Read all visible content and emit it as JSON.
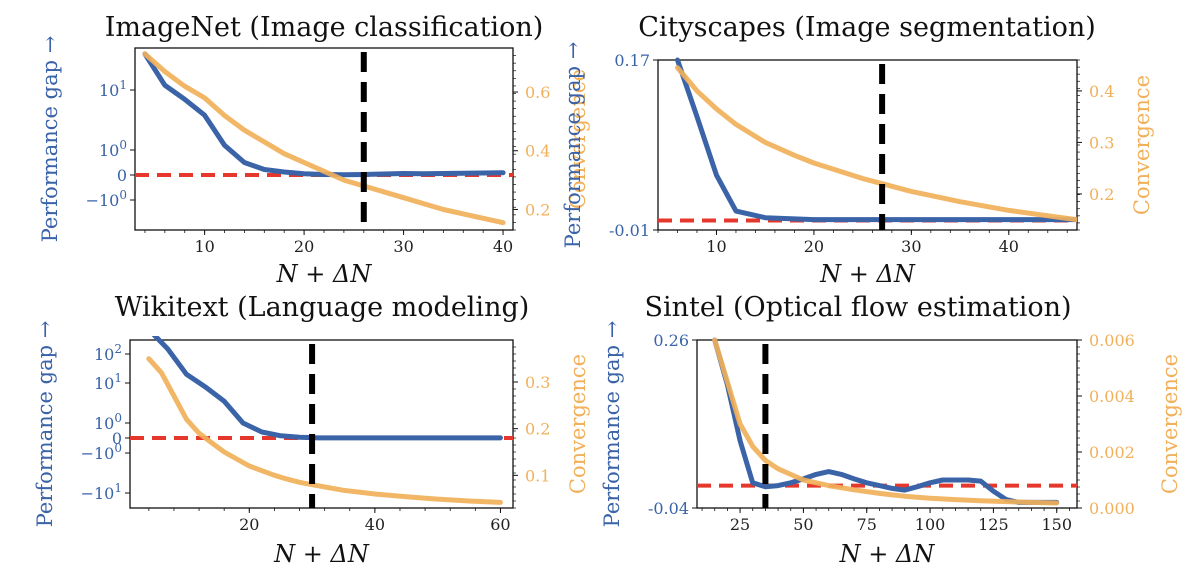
{
  "colors": {
    "performance": "#3a63a8",
    "convergence": "#f1b05a",
    "baseline": "#e5372b",
    "threshold": "#000000",
    "axis_left_text": "#3a63a8",
    "axis_right_text": "#f1b05a"
  },
  "chart_data": [
    {
      "type": "line",
      "title": "ImageNet (Image classification)",
      "xlabel": "N + ΔN",
      "ylabel_left": "Performance gap →",
      "ylabel_right": "Convergence",
      "x_ticks": [
        10,
        20,
        30,
        40
      ],
      "xlim": [
        3,
        41
      ],
      "left_scale": "symlog",
      "left_ticks": [
        "10^1",
        "10^0",
        "0",
        "−10^0"
      ],
      "right_ticks": [
        0.6,
        0.4,
        0.2
      ],
      "right_ylim": [
        0.13,
        0.75
      ],
      "threshold_x": 26,
      "baseline_y": 0,
      "series": [
        {
          "name": "Performance gap",
          "axis": "left",
          "x": [
            4,
            6,
            8,
            10,
            12,
            14,
            16,
            18,
            20,
            22,
            24,
            26,
            28,
            30,
            32,
            34,
            36,
            38,
            40
          ],
          "y": [
            40,
            12,
            7,
            3.8,
            1.2,
            0.5,
            0.22,
            0.12,
            0.05,
            0.02,
            0.01,
            0.02,
            0.04,
            0.06,
            0.05,
            0.06,
            0.07,
            0.08,
            0.09
          ]
        },
        {
          "name": "Convergence",
          "axis": "right",
          "x": [
            4,
            6,
            8,
            10,
            12,
            14,
            16,
            18,
            20,
            22,
            24,
            26,
            28,
            30,
            32,
            34,
            36,
            38,
            40
          ],
          "y": [
            0.73,
            0.67,
            0.62,
            0.58,
            0.52,
            0.47,
            0.43,
            0.39,
            0.36,
            0.33,
            0.3,
            0.28,
            0.26,
            0.24,
            0.22,
            0.2,
            0.185,
            0.17,
            0.155
          ]
        }
      ]
    },
    {
      "type": "line",
      "title": "Cityscapes (Image segmentation)",
      "xlabel": "N + ΔN",
      "ylabel_left": "Performance gap →",
      "ylabel_right": "Convergence",
      "x_ticks": [
        10,
        20,
        30,
        40
      ],
      "xlim": [
        4,
        47
      ],
      "left_scale": "linear",
      "left_ticks": [
        "0.17",
        "-0.01"
      ],
      "left_ylim": [
        -0.01,
        0.17
      ],
      "right_ticks": [
        0.4,
        0.3,
        0.2
      ],
      "right_ylim": [
        0.13,
        0.46
      ],
      "threshold_x": 27,
      "baseline_y": 0,
      "series": [
        {
          "name": "Performance gap",
          "axis": "left",
          "x": [
            6,
            8,
            10,
            12,
            15,
            20,
            25,
            30,
            35,
            40,
            45,
            47
          ],
          "y": [
            0.17,
            0.11,
            0.048,
            0.01,
            0.003,
            0.001,
            0.001,
            0.001,
            0.001,
            0.001,
            0.001,
            0.001
          ]
        },
        {
          "name": "Convergence",
          "axis": "right",
          "x": [
            6,
            8,
            10,
            12,
            15,
            18,
            20,
            25,
            30,
            35,
            40,
            45,
            47
          ],
          "y": [
            0.445,
            0.4,
            0.365,
            0.335,
            0.3,
            0.275,
            0.26,
            0.23,
            0.205,
            0.185,
            0.168,
            0.155,
            0.15
          ]
        }
      ]
    },
    {
      "type": "line",
      "title": "Wikitext (Language modeling)",
      "xlabel": "N + ΔN",
      "ylabel_left": "Performance gap →",
      "ylabel_right": "Convergence",
      "x_ticks": [
        20,
        40,
        60
      ],
      "xlim": [
        1,
        62
      ],
      "left_scale": "symlog",
      "left_ticks": [
        "10^2",
        "10^1",
        "10^0",
        "0",
        "−10^0",
        "−10^1"
      ],
      "right_ticks": [
        0.3,
        0.2,
        0.1
      ],
      "right_ylim": [
        0.03,
        0.39
      ],
      "threshold_x": 30,
      "baseline_y": 0,
      "series": [
        {
          "name": "Performance gap",
          "axis": "left",
          "x": [
            4,
            7,
            10,
            13,
            16,
            19,
            22,
            25,
            28,
            31,
            35,
            40,
            45,
            50,
            55,
            60
          ],
          "y": [
            700,
            150,
            20,
            8,
            3.5,
            1.0,
            0.4,
            0.15,
            0.05,
            0.01,
            0.005,
            0.005,
            0.005,
            0.005,
            0.005,
            0.005
          ]
        },
        {
          "name": "Convergence",
          "axis": "right",
          "x": [
            4,
            6,
            8,
            10,
            12,
            14,
            16,
            18,
            20,
            22,
            24,
            26,
            28,
            30,
            35,
            40,
            45,
            50,
            55,
            60
          ],
          "y": [
            0.35,
            0.32,
            0.27,
            0.22,
            0.19,
            0.17,
            0.15,
            0.135,
            0.12,
            0.11,
            0.1,
            0.092,
            0.085,
            0.08,
            0.068,
            0.06,
            0.054,
            0.049,
            0.045,
            0.042
          ]
        }
      ]
    },
    {
      "type": "line",
      "title": "Sintel (Optical flow estimation)",
      "xlabel": "N + ΔN",
      "ylabel_left": "Performance gap →",
      "ylabel_right": "Convergence",
      "x_ticks": [
        25,
        50,
        75,
        100,
        125,
        150
      ],
      "xlim": [
        8,
        158
      ],
      "left_scale": "linear",
      "left_ticks": [
        "0.26",
        "-0.04"
      ],
      "left_ylim": [
        -0.04,
        0.26
      ],
      "right_ticks": [
        "0.006",
        "0.004",
        "0.002",
        "0.000"
      ],
      "right_ylim": [
        0.0,
        0.006
      ],
      "threshold_x": 35,
      "baseline_y": 0,
      "series": [
        {
          "name": "Performance gap",
          "axis": "left",
          "x": [
            15,
            20,
            25,
            30,
            35,
            40,
            45,
            50,
            55,
            60,
            65,
            70,
            75,
            80,
            85,
            90,
            95,
            100,
            105,
            110,
            115,
            120,
            125,
            130,
            135,
            140,
            150
          ],
          "y": [
            0.26,
            0.18,
            0.08,
            0.005,
            -0.002,
            0.0,
            0.005,
            0.012,
            0.02,
            0.025,
            0.02,
            0.012,
            0.005,
            0.0,
            -0.005,
            -0.008,
            -0.002,
            0.005,
            0.01,
            0.01,
            0.01,
            0.008,
            -0.01,
            -0.025,
            -0.03,
            -0.03,
            -0.03
          ]
        },
        {
          "name": "Convergence",
          "axis": "right",
          "x": [
            15,
            20,
            25,
            30,
            35,
            40,
            45,
            50,
            55,
            60,
            70,
            80,
            90,
            100,
            110,
            120,
            130,
            140,
            150
          ],
          "y": [
            0.006,
            0.0045,
            0.003,
            0.0022,
            0.0017,
            0.0014,
            0.0012,
            0.001,
            0.0009,
            0.0008,
            0.00065,
            0.00052,
            0.00042,
            0.00035,
            0.0003,
            0.00026,
            0.00023,
            0.0002,
            0.00018
          ]
        }
      ]
    }
  ]
}
